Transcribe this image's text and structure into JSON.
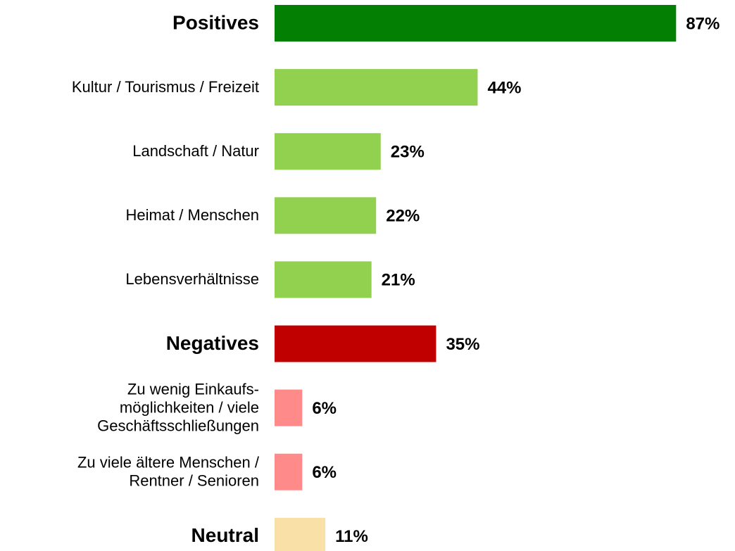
{
  "chart_data": {
    "type": "bar",
    "orientation": "horizontal",
    "categories": [
      "Positives",
      "Kultur / Tourismus / Freizeit",
      "Landschaft / Natur",
      "Heimat / Menschen",
      "Lebensverhältnisse",
      "Negatives",
      "Zu wenig Einkaufs-\nmöglichkeiten / viele\nGeschäftsschließungen",
      "Zu viele ältere Menschen /\nRentner / Senioren",
      "Neutral"
    ],
    "values": [
      87,
      44,
      23,
      22,
      21,
      35,
      6,
      6,
      11
    ],
    "value_labels": [
      "87%",
      "44%",
      "23%",
      "22%",
      "21%",
      "35%",
      "6%",
      "6%",
      "11%"
    ],
    "colors": [
      "#038003",
      "#92d050",
      "#92d050",
      "#92d050",
      "#92d050",
      "#c00000",
      "#ff8a8a",
      "#ff8a8a",
      "#f9e0a6"
    ],
    "emphasis": [
      true,
      false,
      false,
      false,
      false,
      true,
      false,
      false,
      true
    ],
    "xlim": [
      0,
      90
    ]
  }
}
